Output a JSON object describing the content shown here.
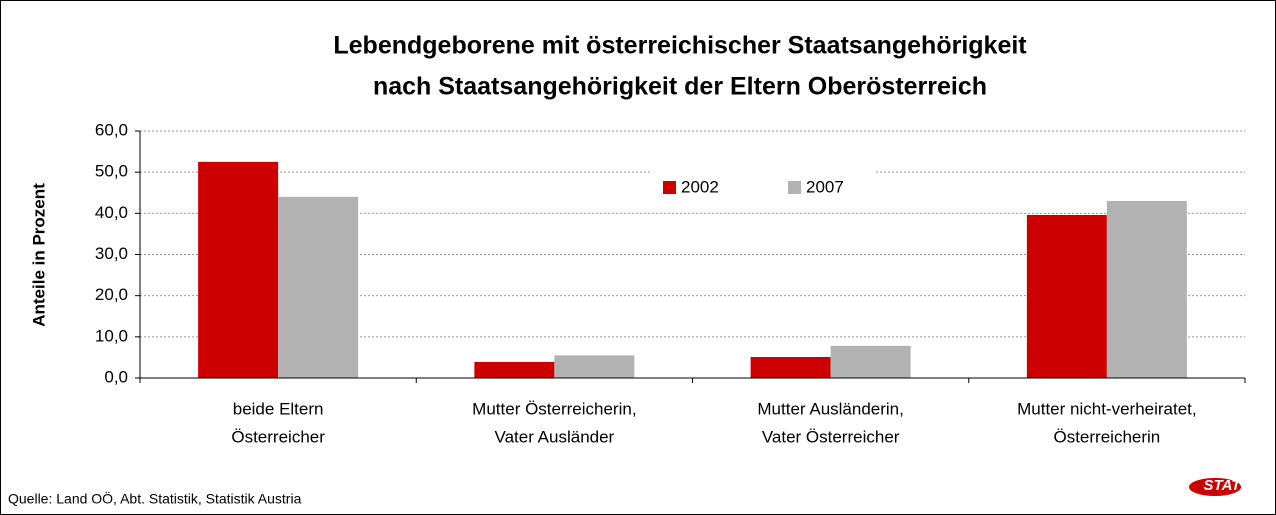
{
  "chart_data": {
    "type": "bar",
    "title": [
      "Lebendgeborene mit österreichischer Staatsangehörigkeit",
      "nach Staatsangehörigkeit der Eltern Oberösterreich"
    ],
    "y_label": "Anteile in Prozent",
    "categories": [
      [
        "beide Eltern",
        "Österreicher"
      ],
      [
        "Mutter Österreicherin,",
        "Vater Ausländer"
      ],
      [
        "Mutter Ausländerin,",
        "Vater Österreicher"
      ],
      [
        "Mutter nicht-verheiratet,",
        "Österreicherin"
      ]
    ],
    "series": [
      {
        "name": "2002",
        "color": "#cc0000",
        "values": [
          52.5,
          3.9,
          5.1,
          39.6
        ]
      },
      {
        "name": "2007",
        "color": "#b2b2b2",
        "values": [
          44.0,
          5.5,
          7.8,
          43.0
        ]
      }
    ],
    "ylim": [
      0,
      60
    ],
    "yticks": [
      {
        "value": 0,
        "label": "0,0"
      },
      {
        "value": 10,
        "label": "10,0"
      },
      {
        "value": 20,
        "label": "20,0"
      },
      {
        "value": 30,
        "label": "30,0"
      },
      {
        "value": 40,
        "label": "40,0"
      },
      {
        "value": 50,
        "label": "50,0"
      },
      {
        "value": 60,
        "label": "60,0"
      }
    ],
    "grid": true,
    "legend": "top",
    "source": "Quelle: Land OÖ, Abt. Statistik, Statistik Austria",
    "logo": "STAT"
  }
}
